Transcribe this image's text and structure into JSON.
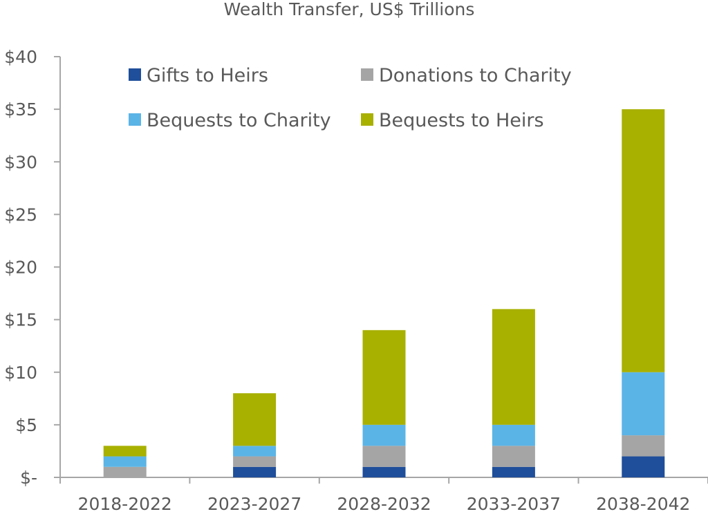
{
  "chart_data": {
    "type": "bar",
    "stacked": true,
    "title": "Wealth Transfer, US$ Trillions",
    "xlabel": "",
    "ylabel": "",
    "categories": [
      "2018-2022",
      "2023-2027",
      "2028-2032",
      "2033-2037",
      "2038-2042"
    ],
    "ylim": [
      0,
      40
    ],
    "yticks": [
      0,
      5,
      10,
      15,
      20,
      25,
      30,
      35,
      40
    ],
    "ytick_labels": [
      "$-",
      "$5",
      "$10",
      "$15",
      "$20",
      "$25",
      "$30",
      "$35",
      "$40"
    ],
    "grid": false,
    "legend_position": "top",
    "series": [
      {
        "name": "Gifts to Heirs",
        "color": "#1f4e9a",
        "values": [
          0,
          1,
          1,
          1,
          2
        ]
      },
      {
        "name": "Donations to Charity",
        "color": "#a5a5a5",
        "values": [
          1,
          1,
          2,
          2,
          2
        ]
      },
      {
        "name": "Bequests to Charity",
        "color": "#5bb4e6",
        "values": [
          1,
          1,
          2,
          2,
          6
        ]
      },
      {
        "name": "Bequests to Heirs",
        "color": "#a8b000",
        "values": [
          1,
          5,
          9,
          11,
          25
        ]
      }
    ]
  }
}
